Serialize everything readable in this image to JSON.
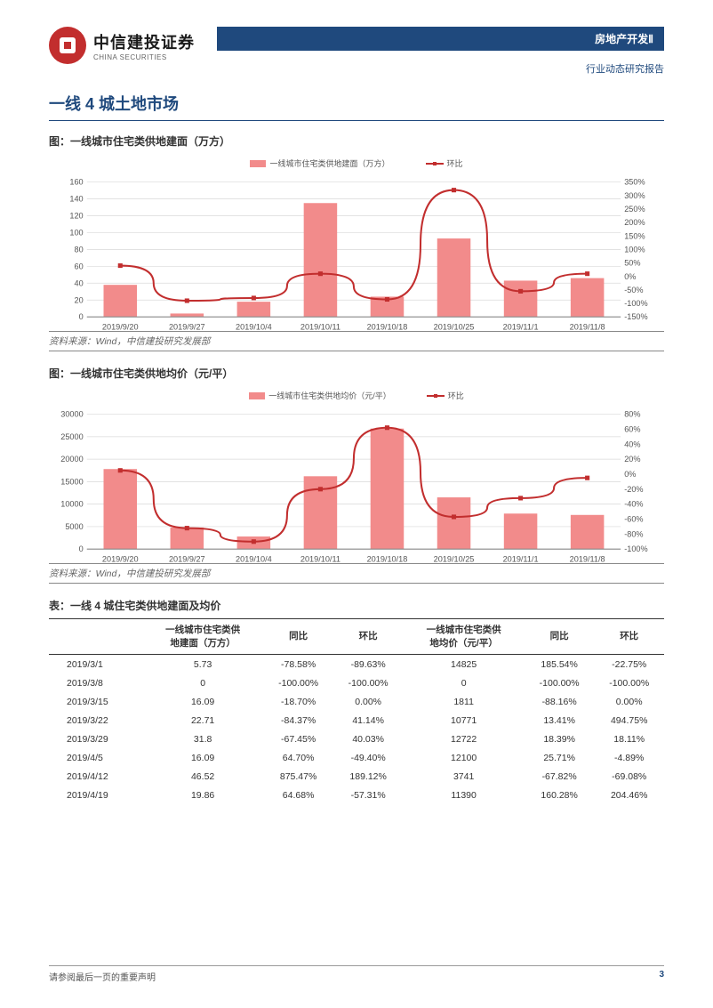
{
  "header": {
    "logo_cn": "中信建投证券",
    "logo_en": "CHINA SECURITIES",
    "blue_bar": "房地产开发Ⅱ",
    "subtitle": "行业动态研究报告"
  },
  "section_title": "一线 4 城土地市场",
  "chart1": {
    "title": "图：一线城市住宅类供地建面（万方）",
    "legend_bar": "一线城市住宅类供地建面（万方）",
    "legend_line": "环比",
    "categories": [
      "2019/9/20",
      "2019/9/27",
      "2019/10/4",
      "2019/10/11",
      "2019/10/18",
      "2019/10/25",
      "2019/11/1",
      "2019/11/8"
    ],
    "bar_values": [
      38,
      4,
      18,
      135,
      24,
      93,
      43,
      46
    ],
    "line_values": [
      40,
      -90,
      -80,
      10,
      -85,
      320,
      -55,
      10
    ],
    "y1_min": 0,
    "y1_max": 160,
    "y1_step": 20,
    "y2_min": -150,
    "y2_max": 350,
    "y2_step": 50,
    "bar_color": "#f28b8b",
    "line_color": "#c22e2e",
    "grid_color": "#d9d9d9",
    "axis_color": "#888888",
    "tick_fontsize": 9,
    "bar_width_ratio": 0.5
  },
  "chart2": {
    "title": "图：一线城市住宅类供地均价（元/平）",
    "legend_bar": "一线城市住宅类供地均价（元/平）",
    "legend_line": "环比",
    "categories": [
      "2019/9/20",
      "2019/9/27",
      "2019/10/4",
      "2019/10/11",
      "2019/10/18",
      "2019/10/25",
      "2019/11/1",
      "2019/11/8"
    ],
    "bar_values": [
      17800,
      4800,
      2800,
      16200,
      26800,
      11500,
      7900,
      7600
    ],
    "line_values": [
      5,
      -72,
      -90,
      -20,
      62,
      -57,
      -32,
      -5
    ],
    "y1_min": 0,
    "y1_max": 30000,
    "y1_step": 5000,
    "y2_min": -100,
    "y2_max": 80,
    "y2_step": 20,
    "bar_color": "#f28b8b",
    "line_color": "#c22e2e",
    "grid_color": "#d9d9d9",
    "axis_color": "#888888",
    "tick_fontsize": 9,
    "bar_width_ratio": 0.5
  },
  "source_text": "资料来源：Wind，中信建投研究发展部",
  "table": {
    "title": "表：一线 4 城住宅类供地建面及均价",
    "columns": [
      "",
      "一线城市住宅类供\n地建面（万方）",
      "同比",
      "环比",
      "一线城市住宅类供\n地均价（元/平）",
      "同比",
      "环比"
    ],
    "rows": [
      [
        "2019/3/1",
        "5.73",
        "-78.58%",
        "-89.63%",
        "14825",
        "185.54%",
        "-22.75%"
      ],
      [
        "2019/3/8",
        "0",
        "-100.00%",
        "-100.00%",
        "0",
        "-100.00%",
        "-100.00%"
      ],
      [
        "2019/3/15",
        "16.09",
        "-18.70%",
        "0.00%",
        "1811",
        "-88.16%",
        "0.00%"
      ],
      [
        "2019/3/22",
        "22.71",
        "-84.37%",
        "41.14%",
        "10771",
        "13.41%",
        "494.75%"
      ],
      [
        "2019/3/29",
        "31.8",
        "-67.45%",
        "40.03%",
        "12722",
        "18.39%",
        "18.11%"
      ],
      [
        "2019/4/5",
        "16.09",
        "64.70%",
        "-49.40%",
        "12100",
        "25.71%",
        "-4.89%"
      ],
      [
        "2019/4/12",
        "46.52",
        "875.47%",
        "189.12%",
        "3741",
        "-67.82%",
        "-69.08%"
      ],
      [
        "2019/4/19",
        "19.86",
        "64.68%",
        "-57.31%",
        "11390",
        "160.28%",
        "204.46%"
      ]
    ]
  },
  "footer": {
    "disclaimer": "请参阅最后一页的重要声明",
    "page": "3"
  },
  "colors": {
    "brand_blue": "#1f497d",
    "brand_red": "#c22e2e"
  }
}
